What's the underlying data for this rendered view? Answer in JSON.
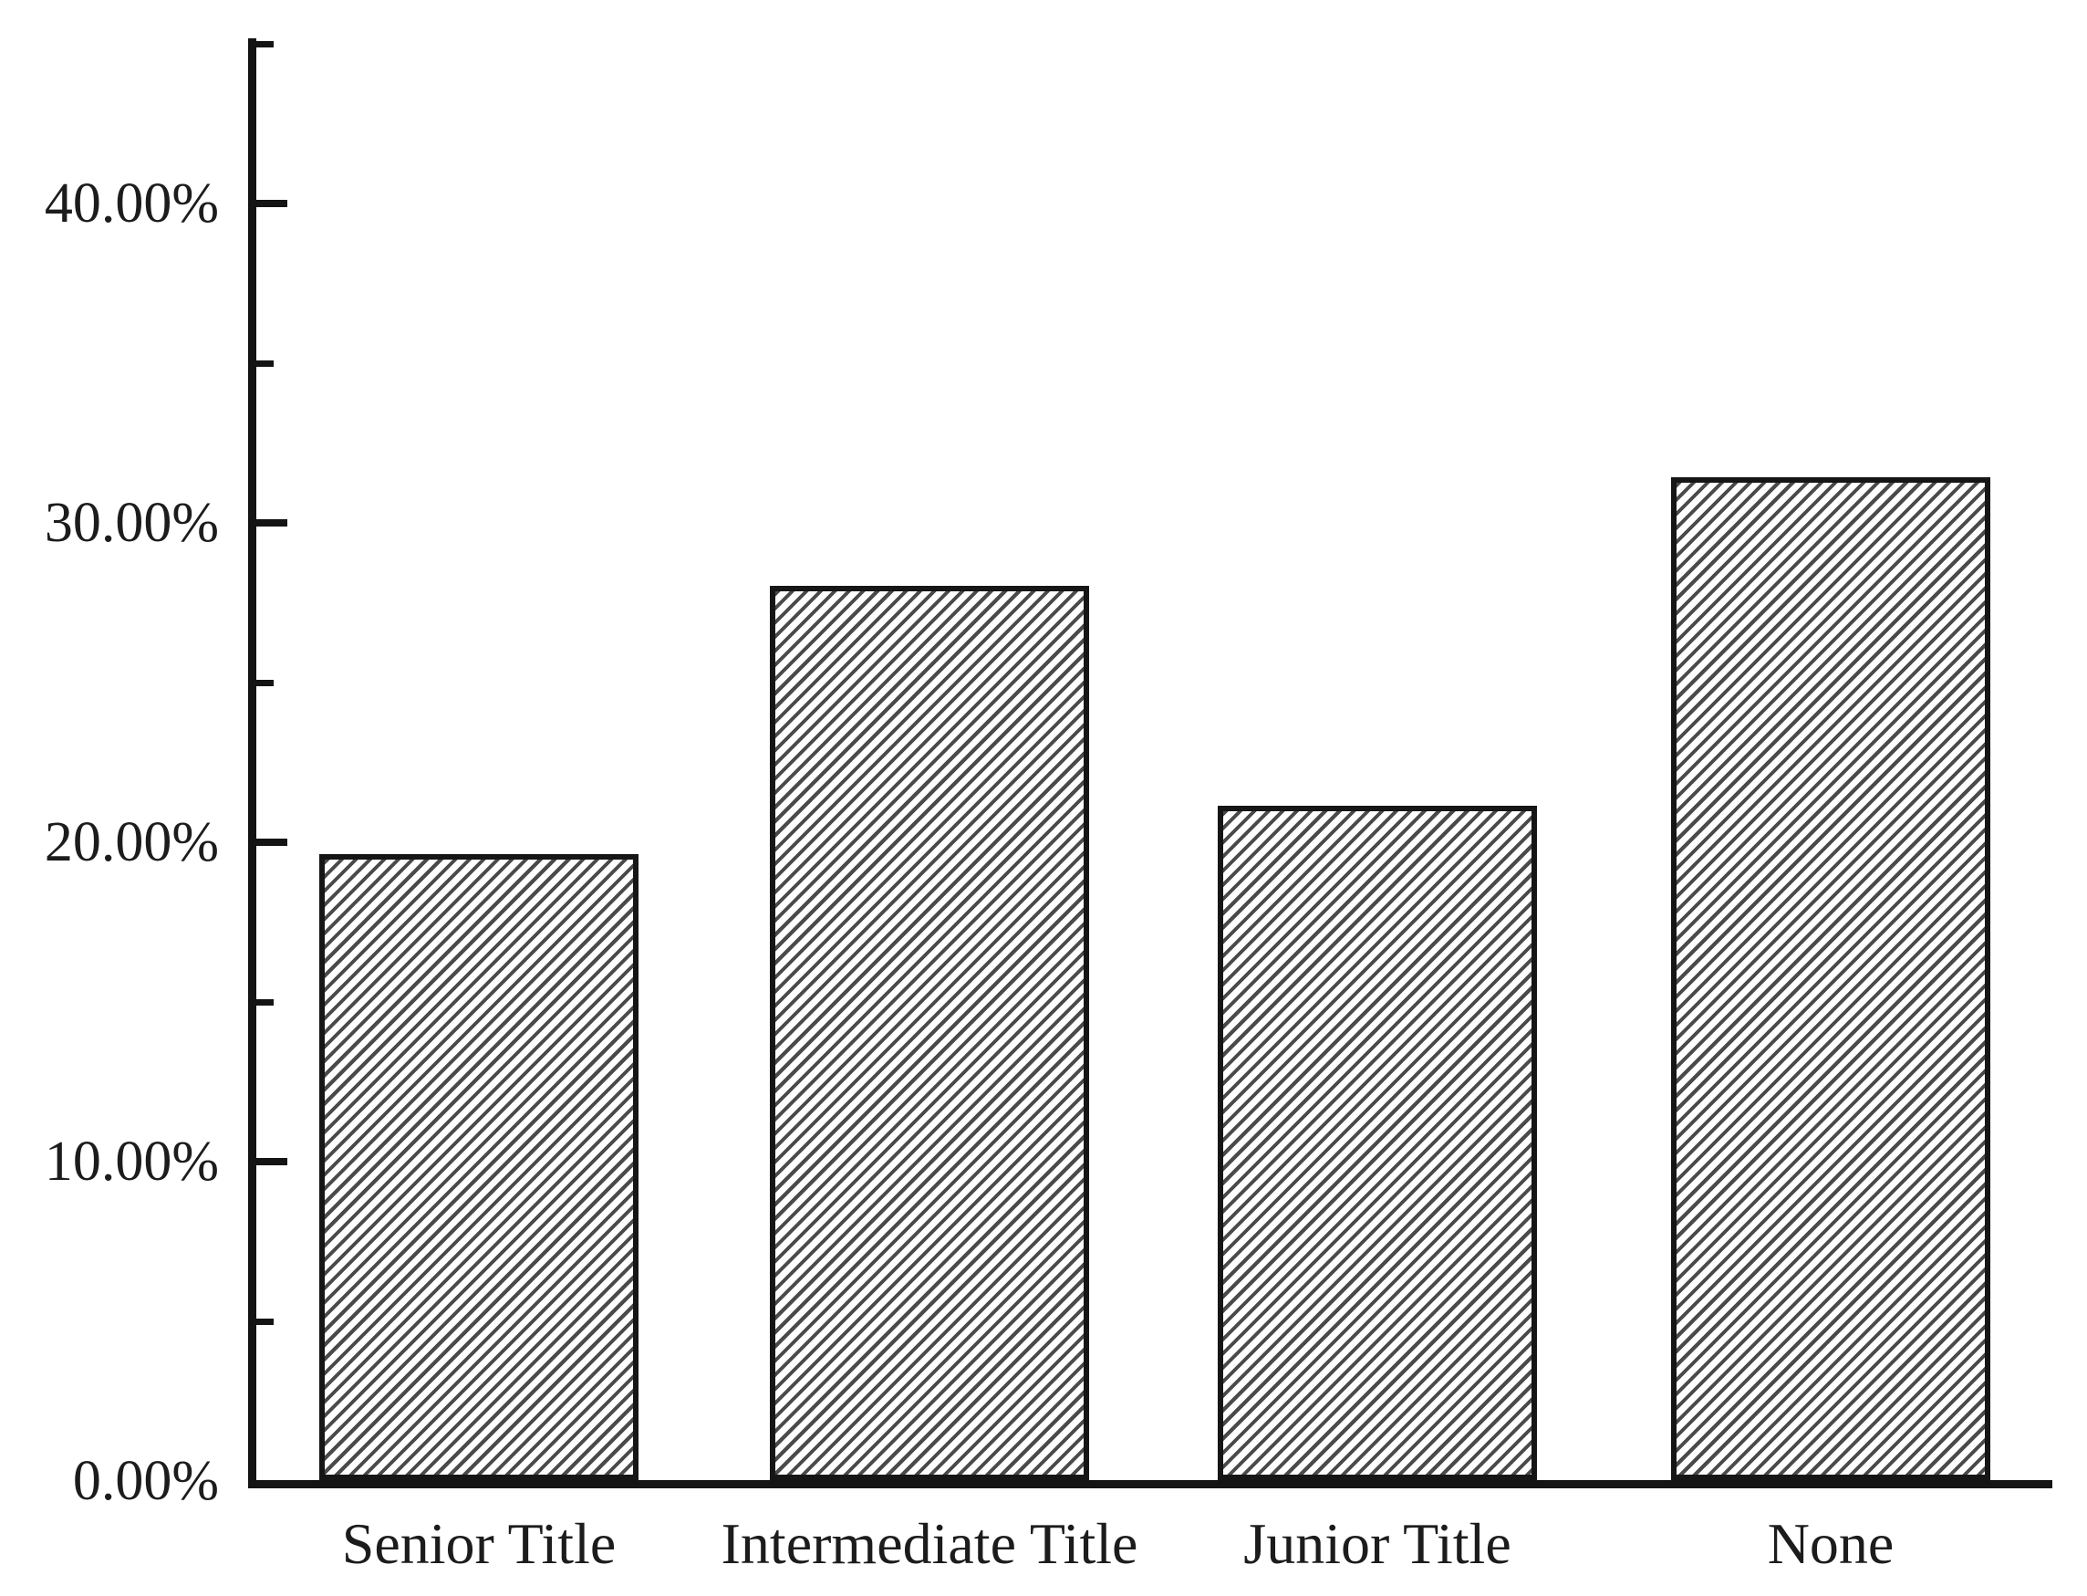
{
  "colors": {
    "background": "#ffffff",
    "ink": "#141414",
    "bar_border": "#161616",
    "bar_fill": "#ffffff",
    "hatch_line": "#4a4a4a",
    "label_text": "#1c1c1c"
  },
  "chart_data": {
    "type": "bar",
    "title": "",
    "xlabel": "",
    "ylabel": "",
    "categories": [
      "Senior Title",
      "Intermediate Title",
      "Junior Title",
      "None"
    ],
    "values": [
      19.6,
      28.0,
      21.1,
      31.4
    ],
    "value_unit": "%",
    "ylim": [
      0,
      45
    ],
    "y_tick_values": [
      0,
      10,
      20,
      30,
      40
    ],
    "y_tick_labels": [
      "0.00%",
      "10.00%",
      "20.00%",
      "30.00%",
      "40.00%"
    ],
    "y_minor_tick_values": [
      5,
      15,
      25,
      35,
      45
    ],
    "grid": false,
    "legend": false,
    "bar_style": {
      "hatch": "forward-diagonal",
      "fill": "#ffffff",
      "border": "#161616"
    }
  }
}
